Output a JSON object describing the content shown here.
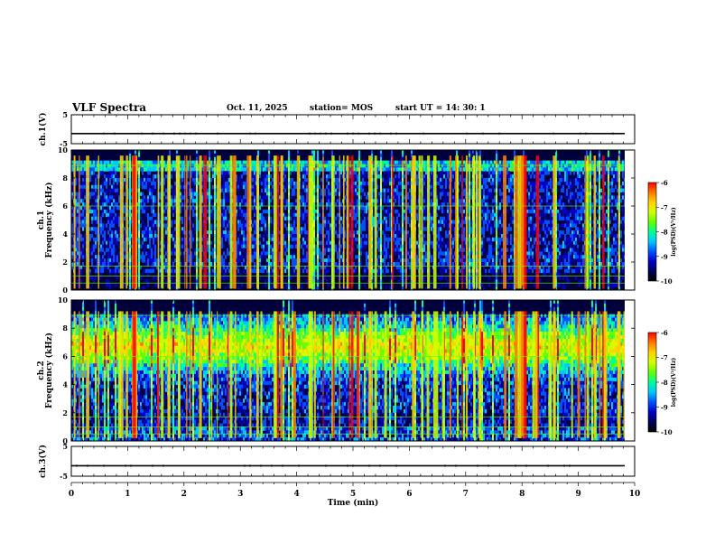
{
  "header": {
    "title": "VLF Spectra",
    "date": "Oct. 11, 2025",
    "station": "station= MOS",
    "start_ut": "start  UT =   14: 30: 1"
  },
  "chart_data": {
    "type": "heatmap",
    "xlabel": "Time  (min)",
    "xlim": [
      0,
      10
    ],
    "xticks": [
      "0",
      "1",
      "2",
      "3",
      "4",
      "5",
      "6",
      "7",
      "8",
      "9",
      "10"
    ],
    "panels": [
      {
        "kind": "waveform",
        "ylabel": "ch.1(V)",
        "ylim": [
          -5,
          5
        ],
        "yticks": [
          "5",
          "-5"
        ],
        "trace_level": -1.5
      },
      {
        "kind": "spectrogram",
        "ylabel_line1": "ch.1",
        "ylabel_line2": "Frequency (kHz)",
        "ylim": [
          0,
          10
        ],
        "yticks": [
          "0",
          "2",
          "4",
          "6",
          "8",
          "10"
        ],
        "colorbar": {
          "label": "log(PSD)(V²/Hz)",
          "range": [
            -10,
            -6
          ],
          "ticks": [
            "-6",
            "-7",
            "-8",
            "-9",
            "-10"
          ]
        }
      },
      {
        "kind": "spectrogram",
        "ylabel_line1": "ch.2",
        "ylabel_line2": "Frequency (kHz)",
        "ylim": [
          0,
          10
        ],
        "yticks": [
          "0",
          "2",
          "4",
          "6",
          "8",
          "10"
        ],
        "colorbar": {
          "label": "log(PSD)(V²/Hz)",
          "range": [
            -10,
            -6
          ],
          "ticks": [
            "-6",
            "-7",
            "-8",
            "-9",
            "-10"
          ]
        }
      },
      {
        "kind": "waveform",
        "ylabel": "ch.3(V)",
        "ylim": [
          -5,
          5
        ],
        "yticks": [
          "5",
          "-5"
        ],
        "trace_level": -1.5
      }
    ],
    "colormap": [
      "#000000",
      "#00005a",
      "#0000c8",
      "#0050ff",
      "#00c8ff",
      "#00ff96",
      "#64ff00",
      "#d2ff00",
      "#ffd200",
      "#ff7800",
      "#ff0000"
    ]
  }
}
